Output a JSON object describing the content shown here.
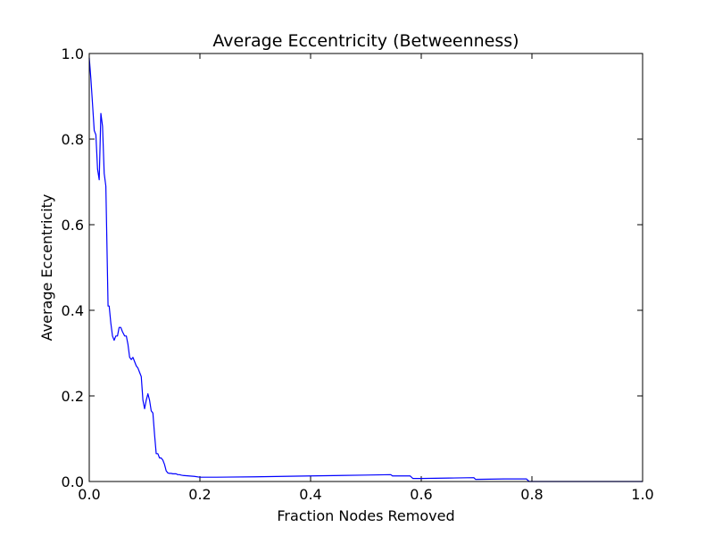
{
  "chart_data": {
    "type": "line",
    "title": "Average Eccentricity (Betweenness)",
    "xlabel": "Fraction Nodes Removed",
    "ylabel": "Average Eccentricity",
    "xlim": [
      0.0,
      1.0
    ],
    "ylim": [
      0.0,
      1.0
    ],
    "xticks": [
      "0.0",
      "0.2",
      "0.4",
      "0.6",
      "0.8",
      "1.0"
    ],
    "yticks": [
      "0.0",
      "0.2",
      "0.4",
      "0.6",
      "0.8",
      "1.0"
    ],
    "grid": false,
    "series_color": "#0000ff",
    "series": [
      {
        "x": [
          0.0,
          0.003,
          0.006,
          0.009,
          0.012,
          0.015,
          0.018,
          0.021,
          0.024,
          0.027,
          0.03,
          0.034,
          0.036,
          0.039,
          0.042,
          0.045,
          0.048,
          0.051,
          0.054,
          0.057,
          0.06,
          0.064,
          0.067,
          0.07,
          0.073,
          0.076,
          0.079,
          0.082,
          0.085,
          0.088,
          0.091,
          0.094,
          0.097,
          0.1,
          0.103,
          0.106,
          0.109,
          0.112,
          0.115,
          0.118,
          0.121,
          0.124,
          0.127,
          0.13,
          0.133,
          0.136,
          0.139,
          0.142,
          0.145,
          0.148,
          0.151,
          0.154,
          0.157,
          0.16,
          0.163,
          0.166,
          0.17,
          0.18,
          0.19,
          0.2,
          0.215,
          0.23,
          0.3,
          0.4,
          0.5,
          0.545,
          0.548,
          0.58,
          0.585,
          0.6,
          0.65,
          0.695,
          0.698,
          0.75,
          0.79,
          0.795,
          0.8,
          1.0
        ],
        "y": [
          0.99,
          0.94,
          0.88,
          0.82,
          0.81,
          0.73,
          0.705,
          0.86,
          0.83,
          0.72,
          0.69,
          0.41,
          0.41,
          0.37,
          0.34,
          0.33,
          0.34,
          0.34,
          0.36,
          0.36,
          0.35,
          0.34,
          0.34,
          0.32,
          0.29,
          0.285,
          0.29,
          0.28,
          0.27,
          0.265,
          0.255,
          0.245,
          0.19,
          0.17,
          0.19,
          0.205,
          0.19,
          0.165,
          0.16,
          0.11,
          0.065,
          0.065,
          0.055,
          0.055,
          0.05,
          0.04,
          0.025,
          0.02,
          0.019,
          0.019,
          0.018,
          0.018,
          0.018,
          0.016,
          0.016,
          0.015,
          0.014,
          0.013,
          0.012,
          0.01,
          0.01,
          0.01,
          0.011,
          0.013,
          0.015,
          0.016,
          0.013,
          0.013,
          0.007,
          0.007,
          0.008,
          0.009,
          0.005,
          0.006,
          0.006,
          0.0,
          0.0,
          0.0
        ]
      }
    ]
  }
}
